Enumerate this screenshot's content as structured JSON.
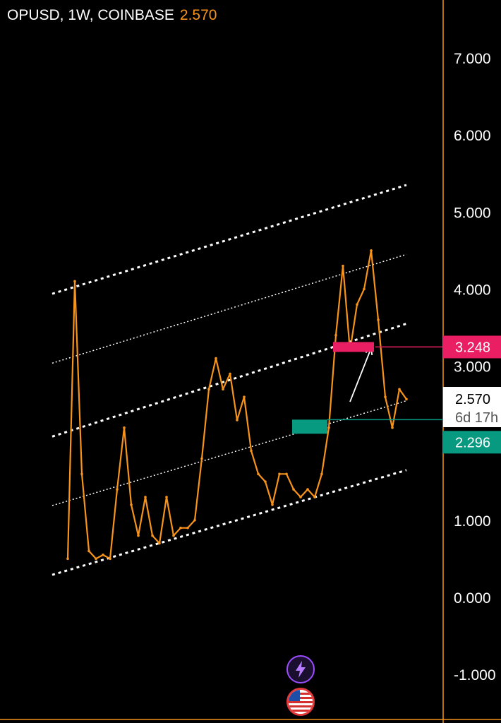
{
  "header": {
    "symbol": "OPUSD, 1W, COINBASE",
    "price": "2.570"
  },
  "price_labels": {
    "current": "2.570",
    "countdown": "6d 17h",
    "resistance": "3.248",
    "support": "2.296"
  },
  "colors": {
    "background": "#000000",
    "candle": "#f7931a",
    "channel": "#ffffff",
    "resistance": "#e91e63",
    "support": "#089981",
    "axis_border": "#f7931a"
  },
  "icons": [
    "lightning-icon",
    "us-flag-icon"
  ],
  "chart_data": {
    "type": "line",
    "title": "OPUSD, 1W, COINBASE",
    "xlabel": "",
    "ylabel": "",
    "ylim": [
      -1.0,
      7.0
    ],
    "yticks": [
      "7.000",
      "6.000",
      "5.000",
      "4.000",
      "3.000",
      "1.000",
      "0.000",
      "-1.000"
    ],
    "ytick_values": [
      7,
      6,
      5,
      4,
      3,
      1,
      0,
      -1
    ],
    "grid": false,
    "series": [
      {
        "values": [
          0.5,
          4.1,
          1.6,
          0.6,
          0.5,
          0.55,
          0.5,
          1.4,
          2.2,
          1.2,
          0.8,
          1.3,
          0.8,
          0.7,
          1.3,
          0.8,
          0.9,
          0.9,
          1.0,
          1.8,
          2.7,
          3.1,
          2.7,
          2.9,
          2.3,
          2.6,
          1.9,
          1.6,
          1.5,
          1.2,
          1.6,
          1.6,
          1.4,
          1.3,
          1.4,
          1.3,
          1.6,
          2.2,
          3.4,
          4.3,
          3.2,
          3.8,
          4.0,
          4.5,
          3.6,
          2.6,
          2.2,
          2.7,
          2.57
        ]
      }
    ],
    "channel": {
      "lower": [
        [
          0,
          0.35
        ],
        [
          48,
          1.65
        ]
      ],
      "upper": [
        [
          0,
          4.0
        ],
        [
          48,
          5.35
        ]
      ],
      "upper_quarter": [
        [
          0,
          3.1
        ],
        [
          48,
          4.45
        ]
      ],
      "mid": [
        [
          0,
          2.15
        ],
        [
          48,
          3.55
        ]
      ],
      "lower_quarter": [
        [
          0,
          1.25
        ],
        [
          48,
          2.55
        ]
      ]
    },
    "annotations": [
      {
        "type": "arrow",
        "from": [
          39,
          2.5
        ],
        "to": [
          41,
          3.05
        ]
      },
      {
        "type": "zone",
        "label": "3.248",
        "value": 3.248
      },
      {
        "type": "zone",
        "label": "2.296",
        "value": 2.296
      }
    ]
  }
}
